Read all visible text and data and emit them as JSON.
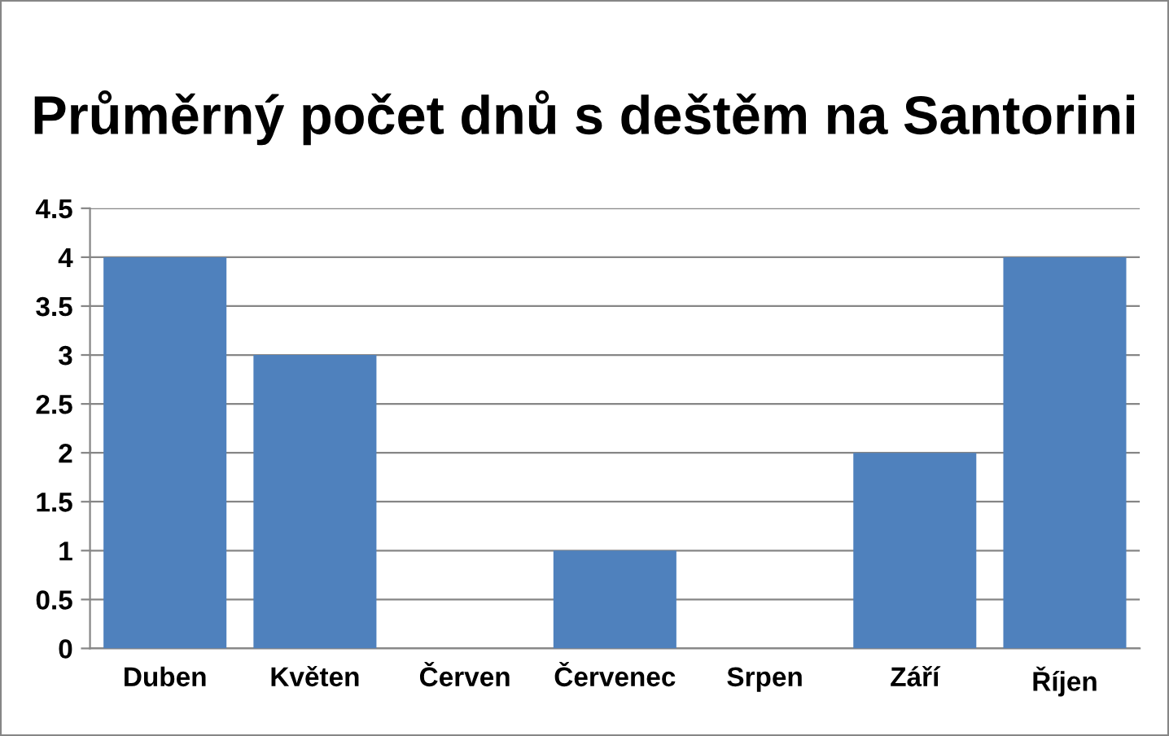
{
  "chart_data": {
    "type": "bar",
    "title": "Průměrný počet dnů s deštěm na Santorini",
    "categories": [
      "Duben",
      "Květen",
      "Červen",
      "Červenec",
      "Srpen",
      "Září",
      "Říjen"
    ],
    "values": [
      4,
      3,
      0,
      1,
      0,
      2,
      4
    ],
    "color": "#4f81bd",
    "ylim": [
      0,
      4.5
    ],
    "yticks": [
      0,
      0.5,
      1,
      1.5,
      2,
      2.5,
      3,
      3.5,
      4,
      4.5
    ],
    "grid": "y",
    "legend": false
  }
}
